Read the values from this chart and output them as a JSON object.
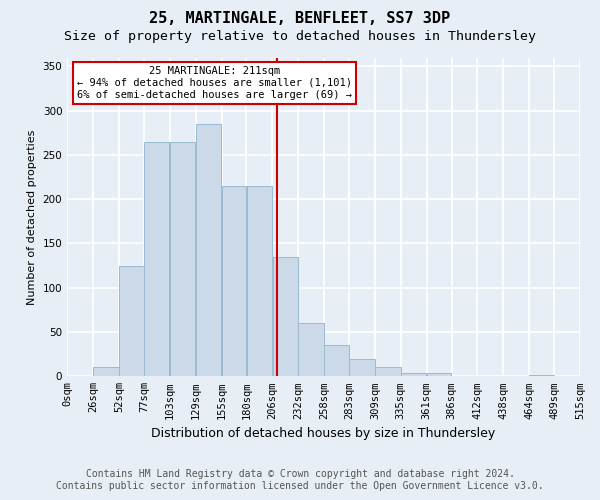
{
  "title": "25, MARTINGALE, BENFLEET, SS7 3DP",
  "subtitle": "Size of property relative to detached houses in Thundersley",
  "xlabel": "Distribution of detached houses by size in Thundersley",
  "ylabel": "Number of detached properties",
  "bin_labels": [
    "0sqm",
    "26sqm",
    "52sqm",
    "77sqm",
    "103sqm",
    "129sqm",
    "155sqm",
    "180sqm",
    "206sqm",
    "232sqm",
    "258sqm",
    "283sqm",
    "309sqm",
    "335sqm",
    "361sqm",
    "386sqm",
    "412sqm",
    "438sqm",
    "464sqm",
    "489sqm",
    "515sqm"
  ],
  "bin_edges": [
    0,
    26,
    52,
    77,
    103,
    129,
    155,
    180,
    206,
    232,
    258,
    283,
    309,
    335,
    361,
    386,
    412,
    438,
    464,
    489,
    515
  ],
  "bar_heights": [
    0,
    10,
    125,
    265,
    265,
    285,
    215,
    215,
    135,
    60,
    35,
    20,
    10,
    4,
    4,
    0,
    0,
    0,
    1,
    0
  ],
  "bar_color": "#ccd9e8",
  "bar_edge_color": "#9bbad0",
  "property_value": 211,
  "vline_color": "#cc0000",
  "annotation_text": "25 MARTINGALE: 211sqm\n← 94% of detached houses are smaller (1,101)\n6% of semi-detached houses are larger (69) →",
  "annotation_box_color": "#ffffff",
  "annotation_box_edge": "#cc0000",
  "ylim_max": 360,
  "yticks": [
    0,
    50,
    100,
    150,
    200,
    250,
    300,
    350
  ],
  "footer_line1": "Contains HM Land Registry data © Crown copyright and database right 2024.",
  "footer_line2": "Contains public sector information licensed under the Open Government Licence v3.0.",
  "bg_color": "#e8eef5",
  "grid_color": "#ffffff",
  "title_fontsize": 11,
  "subtitle_fontsize": 9.5,
  "xlabel_fontsize": 9,
  "ylabel_fontsize": 8,
  "tick_fontsize": 7.5,
  "annot_fontsize": 7.5,
  "footer_fontsize": 7
}
